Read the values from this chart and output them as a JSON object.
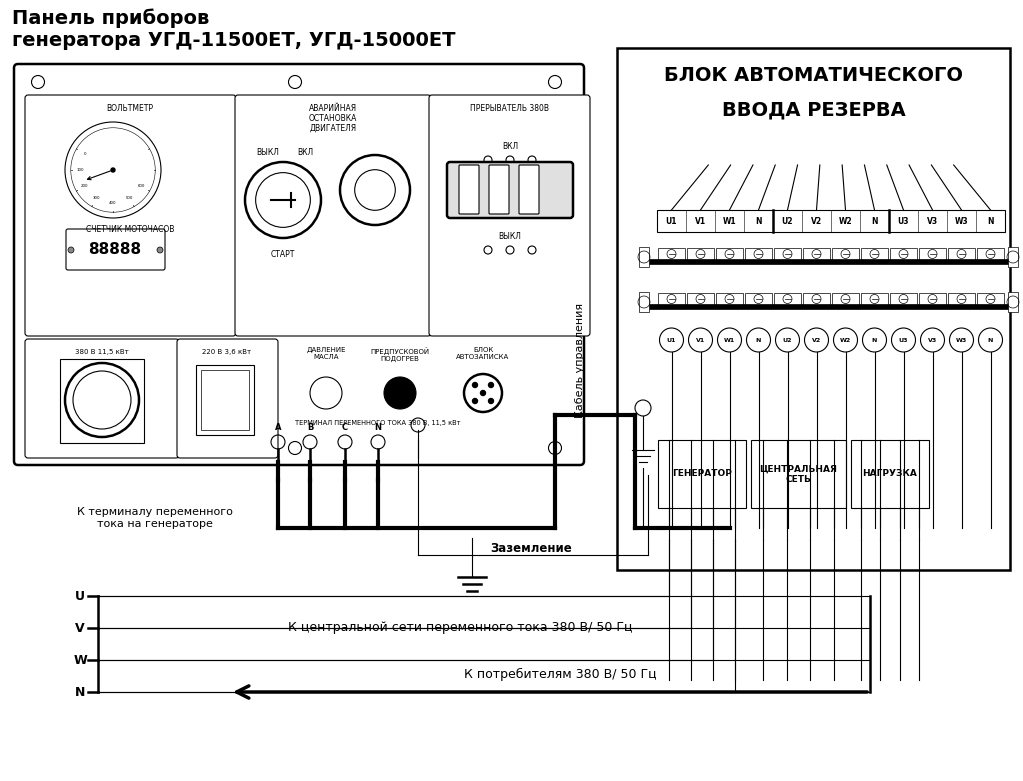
{
  "title_panel": "Панель приборов\nгенератора УГД-11500ЕТ, УГД-15000ЕТ",
  "title_avr_line1": "БЛОК АВТОМАТИЧЕСКОГО",
  "title_avr_line2": "ВВОДА РЕЗЕРВА",
  "label_voltmeter": "ВОЛЬТМЕТР",
  "label_counter": "СЧЕТЧИК МОТОЧАСОВ",
  "label_emergency": "АВАРИЙНАЯ\nОСТАНОВКА\nДВИГАТЕЛЯ",
  "label_breaker": "ПРЕРЫВАТЕЛЬ 380В",
  "label_vykl": "ВЫКЛ",
  "label_vkl": "ВКЛ",
  "label_start": "СТАРТ",
  "label_380v": "380 В 11,5 кВт",
  "label_220v": "220 В 3,6 кВт",
  "label_pressure": "ДАВЛЕНИЕ\nМАСЛА",
  "label_preheat": "ПРЕДПУСКОВОЙ\nПОДОГРЕВ",
  "label_autostart": "БЛОК\nАВТОЗАПИСКА",
  "label_terminal": "ТЕРМИНАЛ ПЕРЕМЕННОГО ТОКА 380 В, 11,5 кВт",
  "label_abcn": [
    "A",
    "B",
    "C",
    "N"
  ],
  "label_cable": "Кабель управления",
  "label_grounding": "Заземление",
  "label_to_generator": "К терминалу переменного\nтока на генераторе",
  "label_to_grid": "К центральной сети переменного тока 380 В/ 50 Гц",
  "label_to_consumers": "К потребителям 380 В/ 50 Гц",
  "label_generator_box": "ГЕНЕРАТОР",
  "label_central_net": "ЦЕНТРАЛЬНАЯ\nСЕТЬ",
  "label_load": "НАГРУЗКА",
  "terminal_labels": [
    "U1",
    "V1",
    "W1",
    "N",
    "U2",
    "V2",
    "W2",
    "N",
    "U3",
    "V3",
    "W3",
    "N"
  ],
  "uvwn_labels": [
    "U",
    "V",
    "W",
    "N"
  ],
  "bg_color": "#ffffff"
}
